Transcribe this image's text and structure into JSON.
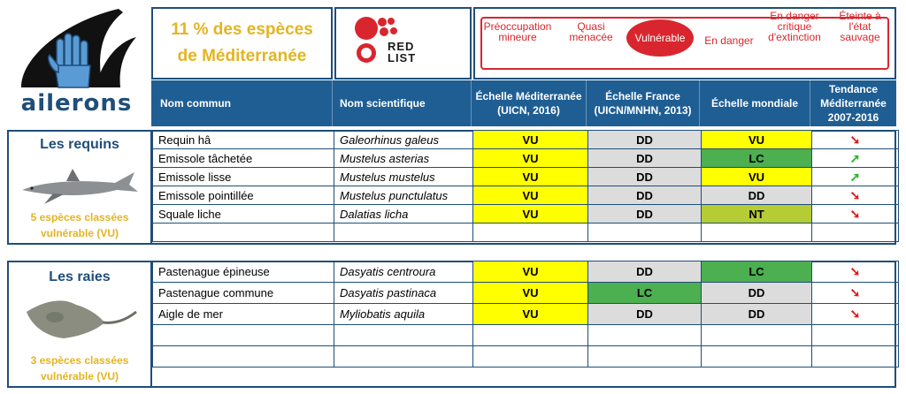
{
  "logo": {
    "text": "ailerons"
  },
  "title": {
    "line1": "11 % des espèces",
    "line2": "de Méditerranée"
  },
  "redlist": {
    "line1": "RED",
    "line2": "LIST"
  },
  "scale": {
    "items": [
      {
        "label": "Préoccupation mineure"
      },
      {
        "label": "Quasi menacée"
      },
      {
        "label": "Vulnérable"
      },
      {
        "label": "En danger"
      },
      {
        "label": "En danger critique d'extinction"
      },
      {
        "label": "Éteinte à l'état sauvage"
      }
    ]
  },
  "columns": {
    "common": "Nom commun",
    "scientific": "Nom scientifique",
    "med": "Échelle Méditerranée (UICN, 2016)",
    "fr": "Échelle France (UICN/MNHN, 2013)",
    "world": "Échelle mondiale",
    "trend": "Tendance Méditerranée 2007-2016"
  },
  "colors": {
    "VU": "#ffff00",
    "DD": "#dcdcdc",
    "LC": "#4caf50",
    "NT": "#b5cc34",
    "border": "#1f4e79",
    "header": "#1f5e93",
    "accent": "#e3b422",
    "red": "#d9262e"
  },
  "sharks": {
    "title": "Les requins",
    "note1": "5 espèces classées",
    "note2": "vulnérable (VU)",
    "rows": [
      {
        "common": "Requin hâ",
        "sci": "Galeorhinus galeus",
        "med": "VU",
        "fr": "DD",
        "world": "VU",
        "trend": "down"
      },
      {
        "common": "Emissole tâchetée",
        "sci": "Mustelus asterias",
        "med": "VU",
        "fr": "DD",
        "world": "LC",
        "trend": "up"
      },
      {
        "common": "Emissole lisse",
        "sci": "Mustelus mustelus",
        "med": "VU",
        "fr": "DD",
        "world": "VU",
        "trend": "up"
      },
      {
        "common": "Emissole pointillée",
        "sci": "Mustelus punctulatus",
        "med": "VU",
        "fr": "DD",
        "world": "DD",
        "trend": "down"
      },
      {
        "common": "Squale liche",
        "sci": "Dalatias licha",
        "med": "VU",
        "fr": "DD",
        "world": "NT",
        "trend": "down"
      }
    ]
  },
  "rays": {
    "title": "Les raies",
    "note1": "3 espèces classées",
    "note2": "vulnérable (VU)",
    "rows": [
      {
        "common": "Pastenague épineuse",
        "sci": "Dasyatis centroura",
        "med": "VU",
        "fr": "DD",
        "world": "LC",
        "trend": "down"
      },
      {
        "common": "Pastenague commune",
        "sci": "Dasyatis pastinaca",
        "med": "VU",
        "fr": "LC",
        "world": "DD",
        "trend": "down"
      },
      {
        "common": "Aigle de mer",
        "sci": "Myliobatis aquila",
        "med": "VU",
        "fr": "DD",
        "world": "DD",
        "trend": "down"
      }
    ]
  },
  "arrows": {
    "down": "➘",
    "up": "➚"
  }
}
